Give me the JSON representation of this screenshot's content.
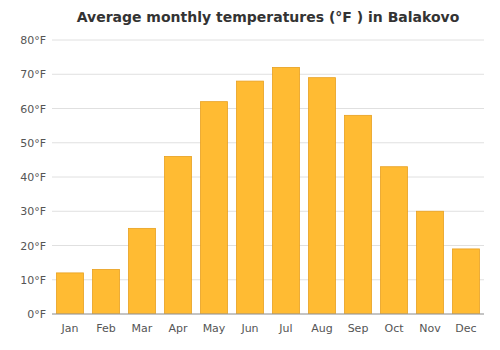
{
  "chart_data": {
    "type": "bar",
    "title": "Average monthly temperatures (°F ) in Balakovo",
    "categories": [
      "Jan",
      "Feb",
      "Mar",
      "Apr",
      "May",
      "Jun",
      "Jul",
      "Aug",
      "Sep",
      "Oct",
      "Nov",
      "Dec"
    ],
    "values": [
      12,
      13,
      25,
      46,
      62,
      68,
      72,
      69,
      58,
      43,
      30,
      19
    ],
    "color": "#FFBB33",
    "ylim": [
      0,
      80
    ],
    "yticks": [
      {
        "value": 0,
        "label": "0°F"
      },
      {
        "value": 10,
        "label": "10°F"
      },
      {
        "value": 20,
        "label": "20°F"
      },
      {
        "value": 30,
        "label": "30°F"
      },
      {
        "value": 40,
        "label": "40°F"
      },
      {
        "value": 50,
        "label": "50°F"
      },
      {
        "value": 60,
        "label": "60°F"
      },
      {
        "value": 70,
        "label": "70°F"
      },
      {
        "value": 80,
        "label": "80°F"
      }
    ],
    "grid": true
  }
}
